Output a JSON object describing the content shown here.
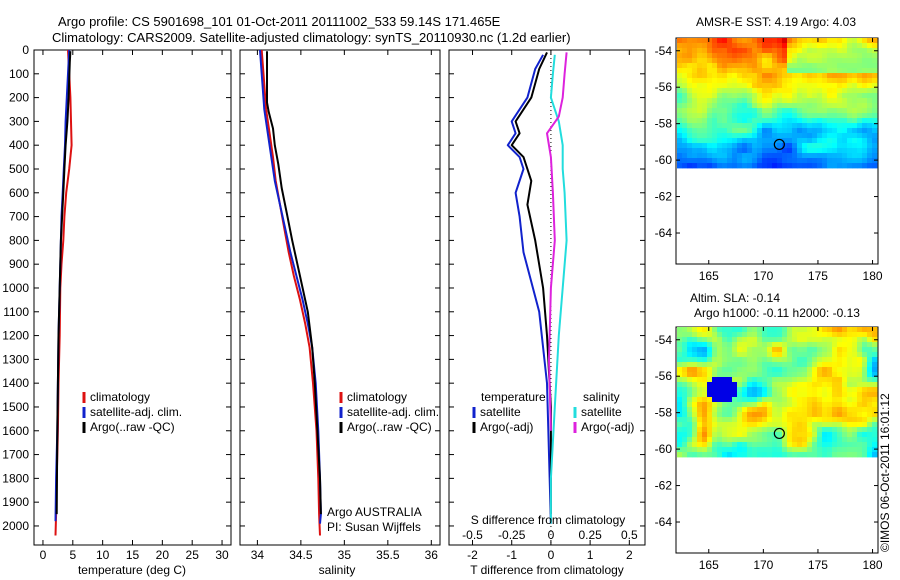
{
  "figure": {
    "title_line1": "Argo profile: CS 5901698_101 01-Oct-2011 20111002_533 59.14S 171.465E",
    "title_line2": "Climatology: CARS2009. Satellite-adjusted climatology: synTS_20110930.nc (1.2d earlier)",
    "credit": "©IMOS 06-Oct-2011 16:01:12"
  },
  "colors": {
    "climatology": "#dd1111",
    "satellite": "#1122cc",
    "argo": "#000000",
    "salinity_satellite": "#22dddd",
    "salinity_argo": "#dd22dd"
  },
  "chart_data": [
    {
      "id": "temperature",
      "type": "line",
      "xlabel": "temperature (deg C)",
      "ylabel": "",
      "xlim": [
        -1.5,
        31.5
      ],
      "ylim": [
        2080,
        0
      ],
      "xticks": [
        0,
        5,
        10,
        15,
        20,
        25,
        30
      ],
      "yticks": [
        0,
        100,
        200,
        300,
        400,
        500,
        600,
        700,
        800,
        900,
        1000,
        1100,
        1200,
        1300,
        1400,
        1500,
        1600,
        1700,
        1800,
        1900,
        2000
      ],
      "legend": [
        "climatology",
        "satellite-adj. clim.",
        "Argo(..raw -QC)"
      ],
      "series": [
        {
          "name": "climatology",
          "color": "climatology",
          "x": [
            4.2,
            4.3,
            4.6,
            4.7,
            4.8,
            4.4,
            3.9,
            3.6,
            3.4,
            3.1,
            2.9,
            2.8,
            2.6,
            2.5,
            2.3,
            2.2,
            2.1
          ],
          "y": [
            0,
            50,
            200,
            300,
            400,
            500,
            600,
            700,
            800,
            900,
            1000,
            1200,
            1400,
            1600,
            1800,
            1950,
            2040
          ]
        },
        {
          "name": "satellite-adj. clim.",
          "color": "satellite",
          "x": [
            4.4,
            4.3,
            4.0,
            3.8,
            3.7,
            3.5,
            3.3,
            3.1,
            3.0,
            2.8,
            2.6,
            2.5,
            2.4,
            2.2,
            2.1
          ],
          "y": [
            0,
            50,
            200,
            300,
            400,
            500,
            600,
            700,
            800,
            1000,
            1200,
            1400,
            1600,
            1800,
            1980
          ]
        },
        {
          "name": "Argo(..raw -QC)",
          "color": "argo",
          "x": [
            4.6,
            4.5,
            4.3,
            4.1,
            3.8,
            3.6,
            3.4,
            3.2,
            3.0,
            2.8,
            2.6,
            2.5,
            2.4,
            2.3
          ],
          "y": [
            5,
            50,
            200,
            300,
            400,
            500,
            600,
            700,
            800,
            1000,
            1200,
            1400,
            1600,
            1950
          ]
        }
      ]
    },
    {
      "id": "salinity",
      "type": "line",
      "xlabel": "salinity",
      "ylabel": "",
      "xlim": [
        33.8,
        36.1
      ],
      "ylim": [
        2080,
        0
      ],
      "xticks": [
        34,
        34.5,
        35,
        35.5,
        36
      ],
      "legend": [
        "climatology",
        "satellite-adj. clim.",
        "Argo(..raw -QC)"
      ],
      "annotation_line1": "Argo AUSTRALIA",
      "annotation_line2": "PI: Susan Wijffels",
      "series": [
        {
          "name": "climatology",
          "color": "climatology",
          "x": [
            34.05,
            34.07,
            34.1,
            34.14,
            34.18,
            34.21,
            34.26,
            34.31,
            34.36,
            34.42,
            34.49,
            34.55,
            34.6,
            34.64,
            34.68,
            34.7,
            34.71,
            34.72
          ],
          "y": [
            0,
            100,
            250,
            350,
            450,
            550,
            650,
            750,
            850,
            950,
            1050,
            1150,
            1250,
            1400,
            1600,
            1800,
            1950,
            2040
          ]
        },
        {
          "name": "satellite-adj. clim.",
          "color": "satellite",
          "x": [
            34.03,
            34.05,
            34.08,
            34.12,
            34.16,
            34.2,
            34.26,
            34.32,
            34.38,
            34.45,
            34.52,
            34.58,
            34.63,
            34.67,
            34.7,
            34.72,
            34.73,
            34.72
          ],
          "y": [
            0,
            100,
            250,
            350,
            450,
            550,
            650,
            750,
            850,
            950,
            1050,
            1150,
            1250,
            1400,
            1600,
            1800,
            1950,
            1990
          ]
        },
        {
          "name": "Argo(..raw -QC)",
          "color": "argo",
          "x": [
            34.11,
            34.11,
            34.13,
            34.18,
            34.2,
            34.24,
            34.28,
            34.34,
            34.4,
            34.46,
            34.52,
            34.58,
            34.63,
            34.66,
            34.69,
            34.72,
            34.73
          ],
          "y": [
            5,
            220,
            260,
            330,
            400,
            480,
            580,
            690,
            800,
            900,
            1000,
            1100,
            1250,
            1400,
            1600,
            1800,
            1950
          ]
        }
      ]
    },
    {
      "id": "difference",
      "type": "line",
      "xlabel": "T difference from climatology",
      "xlabel_top": "S difference from climatology",
      "ylabel": "",
      "xlim": [
        -2.6,
        2.4
      ],
      "ylim": [
        2080,
        0
      ],
      "xticks": [
        -2,
        -1,
        0,
        1,
        2
      ],
      "s_xticks": [
        "-0.5",
        "-0.25",
        "0",
        "0.25",
        "0.5"
      ],
      "legend_left_title": "temperature",
      "legend_right_title": "salinity",
      "legend": [
        "satellite",
        "Argo(-adj)",
        "satellite",
        "Argo(-adj)"
      ],
      "series": [
        {
          "name": "satellite",
          "group": "temperature",
          "color": "satellite",
          "x": [
            -0.2,
            -0.4,
            -0.6,
            -1.0,
            -0.9,
            -1.1,
            -0.8,
            -0.7,
            -0.9,
            -0.8,
            -0.7,
            -0.3,
            -0.1,
            -0.05,
            0.0
          ],
          "y": [
            20,
            80,
            200,
            300,
            350,
            400,
            450,
            500,
            600,
            700,
            850,
            1100,
            1400,
            1700,
            1990
          ]
        },
        {
          "name": "Argo(-adj)",
          "group": "temperature",
          "color": "argo",
          "x": [
            -0.1,
            -0.3,
            -0.5,
            -0.9,
            -0.8,
            -1.0,
            -0.7,
            -0.5,
            -0.6,
            -0.4,
            -0.2,
            -0.1,
            0.0,
            0.0
          ],
          "y": [
            10,
            80,
            200,
            300,
            350,
            400,
            450,
            550,
            650,
            800,
            1000,
            1200,
            1500,
            1950
          ]
        },
        {
          "name": "satellite",
          "group": "salinity",
          "color": "salinity_satellite",
          "x": [
            0.1,
            0.05,
            0.0,
            0.2,
            0.3,
            0.3,
            0.35,
            0.4,
            0.3,
            0.2,
            0.1,
            0.0,
            0.0
          ],
          "y": [
            20,
            100,
            200,
            300,
            400,
            500,
            600,
            800,
            1000,
            1200,
            1500,
            1800,
            1990
          ]
        },
        {
          "name": "Argo(-adj)",
          "group": "salinity",
          "color": "salinity_argo",
          "x": [
            0.4,
            0.35,
            0.3,
            0.2,
            -0.1,
            0.0,
            0.05,
            0.1,
            0.0,
            -0.05,
            0.0
          ],
          "y": [
            10,
            100,
            200,
            280,
            350,
            450,
            600,
            800,
            1000,
            1300,
            1600
          ]
        }
      ]
    },
    {
      "id": "sst_map",
      "type": "heatmap",
      "title": "AMSR-E SST: 4.19 Argo: 4.03",
      "xlim": [
        162,
        180.5
      ],
      "ylim": [
        -65.7,
        -53.3
      ],
      "xticks": [
        165,
        170,
        175,
        180
      ],
      "yticks": [
        -54,
        -56,
        -58,
        -60,
        -62,
        -64
      ],
      "data_extent_x": [
        161.5,
        180
      ],
      "data_extent_y": [
        -60.2,
        -53.3
      ],
      "marker": {
        "lon": 171.465,
        "lat": -59.14
      }
    },
    {
      "id": "sla_map",
      "type": "heatmap",
      "title": "Altim. SLA: -0.14",
      "subtitle": "Argo h1000: -0.11 h2000: -0.13",
      "xlim": [
        162,
        180.5
      ],
      "ylim": [
        -65.7,
        -53.3
      ],
      "xticks": [
        165,
        170,
        175,
        180
      ],
      "yticks": [
        -54,
        -56,
        -58,
        -60,
        -62,
        -64
      ],
      "data_extent_x": [
        161.5,
        180
      ],
      "data_extent_y": [
        -60.2,
        -53.3
      ],
      "marker": {
        "lon": 171.465,
        "lat": -59.14
      }
    }
  ]
}
